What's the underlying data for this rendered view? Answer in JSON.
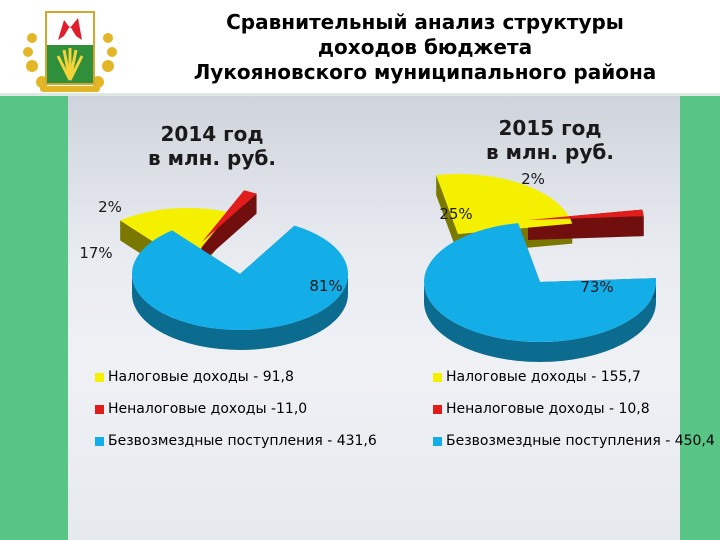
{
  "header": {
    "title_lines": [
      "Сравнительный анализ структуры",
      "доходов бюджета",
      "Лукояновского муниципального района"
    ]
  },
  "colors": {
    "tax": "#f4f000",
    "nontax": "#e21b1b",
    "gratuitous": "#13aee8",
    "band": "#58c586"
  },
  "chart_data": [
    {
      "type": "pie",
      "title": "2014 год в млн. руб.",
      "title_lines": [
        "2014 год",
        "в млн. руб."
      ],
      "slice_labels": [
        "17%",
        "2%",
        "81%"
      ],
      "categories": [
        "Налоговые доходы",
        "Неналоговые доходы",
        "Безвозмездные поступления"
      ],
      "values": [
        91.8,
        11.0,
        431.6
      ],
      "percent": [
        17,
        2,
        81
      ],
      "legend": [
        "Налоговые доходы - 91,8",
        "Неналоговые доходы -11,0",
        "Безвозмездные поступления - 431,6"
      ]
    },
    {
      "type": "pie",
      "title": "2015 год в млн. руб.",
      "title_lines": [
        "2015 год",
        "в млн. руб."
      ],
      "slice_labels": [
        "25%",
        "2%",
        "73%"
      ],
      "categories": [
        "Налоговые доходы",
        "Неналоговые доходы",
        "Безвозмездные поступления"
      ],
      "values": [
        155.7,
        10.8,
        450.4
      ],
      "percent": [
        25,
        2,
        73
      ],
      "legend": [
        "Налоговые доходы - 155,7",
        "Неналоговые доходы - 10,8",
        "Безвозмездные поступления - 450,4"
      ]
    }
  ]
}
